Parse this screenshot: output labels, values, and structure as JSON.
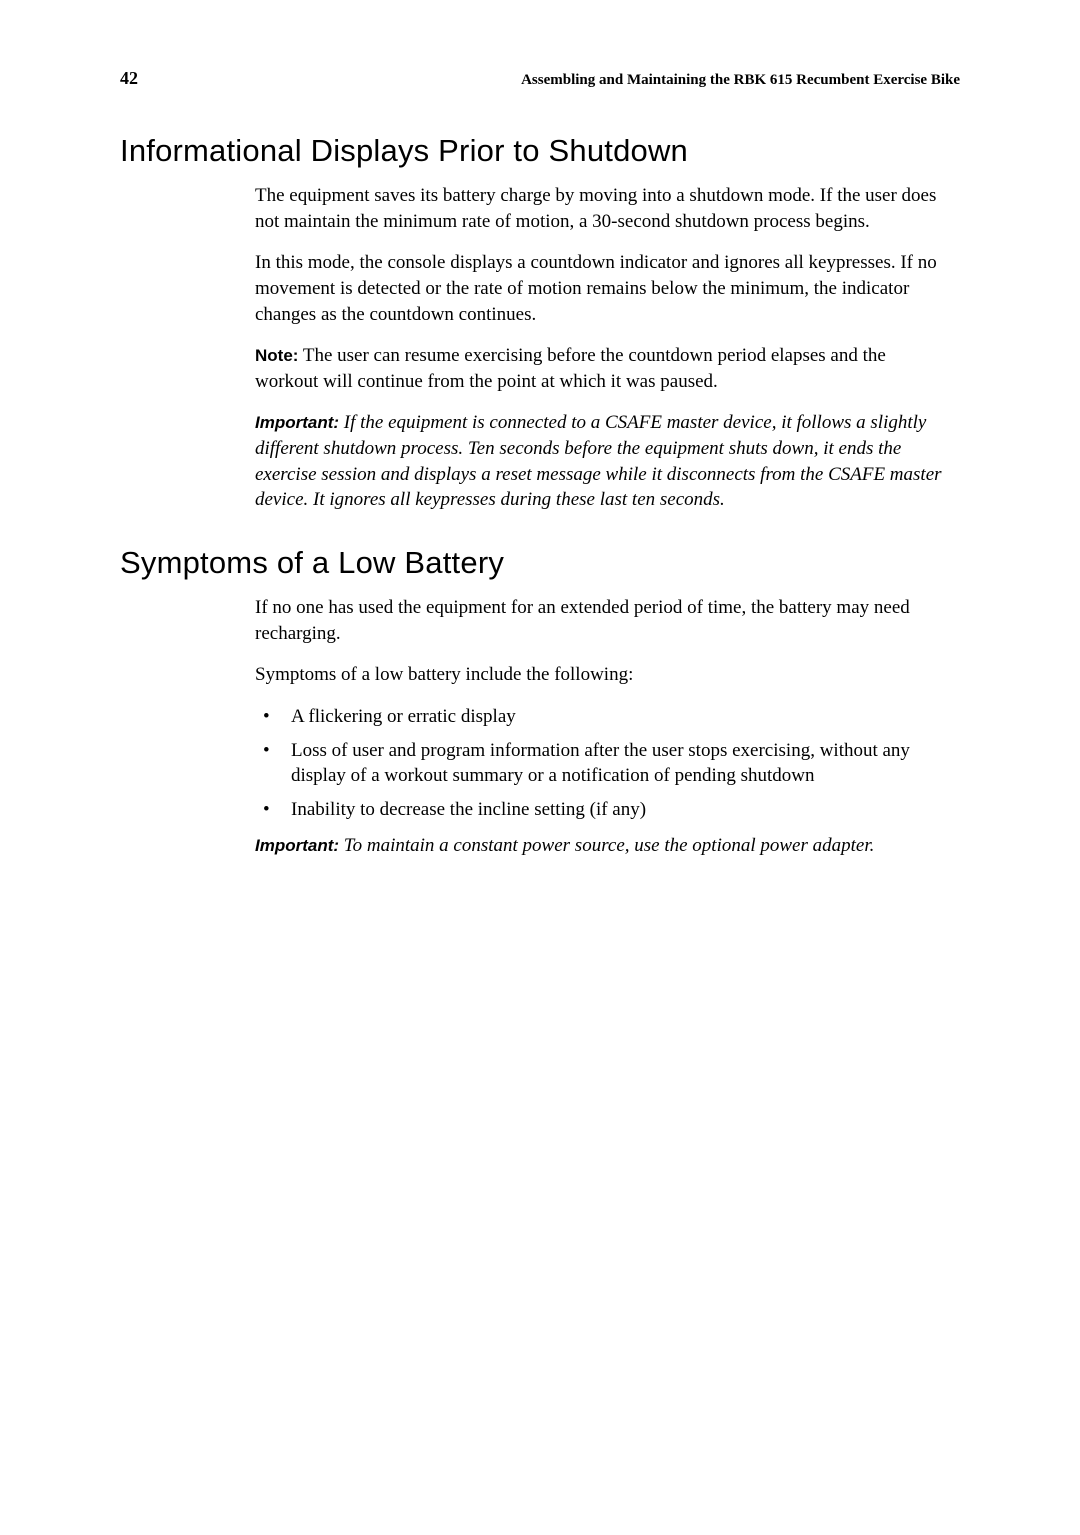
{
  "header": {
    "page_number": "42",
    "running_title": "Assembling and Maintaining the RBK 615 Recumbent Exercise Bike"
  },
  "section1": {
    "heading": "Informational Displays Prior to Shutdown",
    "p1": "The equipment saves its battery charge by moving into a shutdown mode. If the user does not maintain the minimum rate of motion, a 30-second shutdown process begins.",
    "p2": "In this mode, the console displays a countdown indicator and ignores all keypresses. If no movement is detected or the rate of motion remains below the minimum, the indicator changes as the countdown continues.",
    "note_label": "Note:",
    "note_text": " The user can resume exercising before the countdown period elapses and the workout will continue from the point at which it was paused.",
    "important_label": "Important:",
    "important_text": " If the equipment is connected to a CSAFE master device, it follows a slightly different shutdown process. Ten seconds before the equipment shuts down, it ends the exercise session and displays a reset message while it disconnects from the CSAFE master device. It ignores all keypresses during these last ten seconds."
  },
  "section2": {
    "heading": "Symptoms of a Low Battery",
    "p1": "If no one has used the equipment for an extended period of time, the battery may need recharging.",
    "p2": "Symptoms of a low battery include the following:",
    "bullets": {
      "b1": "A flickering or erratic display",
      "b2": "Loss of user and program information after the user stops exercising, without any display of a workout summary or a notification of pending shutdown",
      "b3": "Inability to decrease the incline setting (if any)"
    },
    "important_label": "Important:",
    "important_text": " To maintain a constant power source, use the optional power adapter."
  }
}
